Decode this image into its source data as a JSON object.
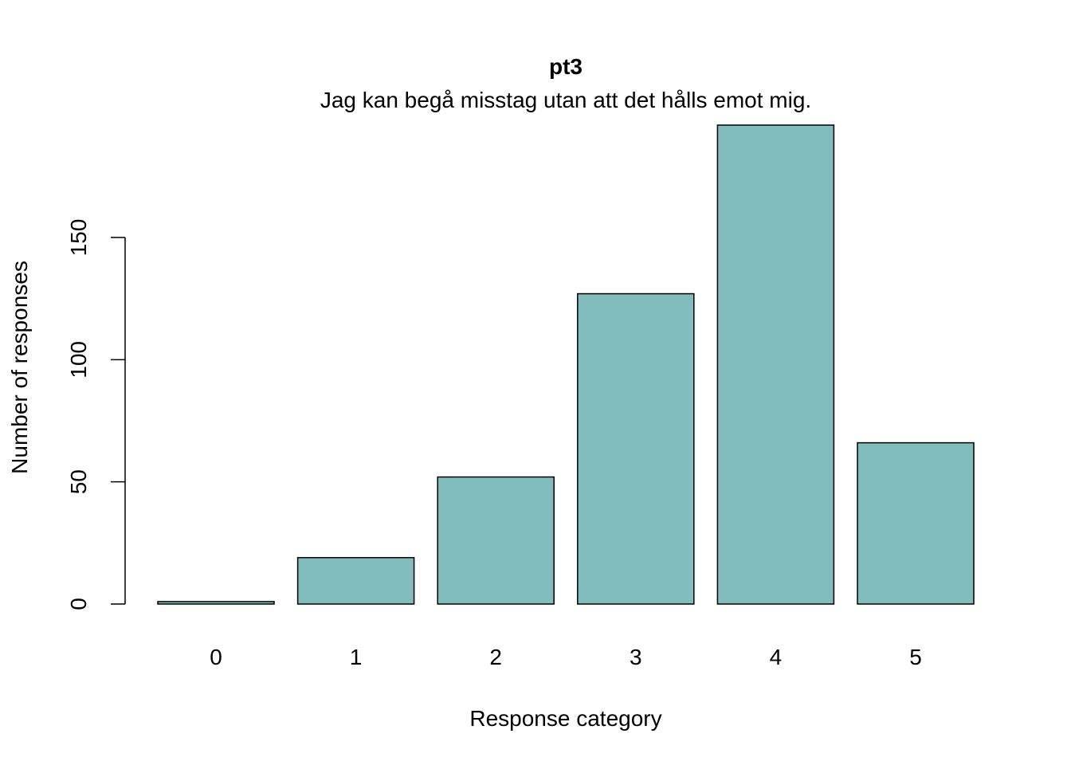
{
  "chart_data": {
    "type": "bar",
    "title": "pt3",
    "subtitle": "Jag kan begå misstag utan att det hålls emot mig.",
    "xlabel": "Response category",
    "ylabel": "Number of responses",
    "categories": [
      "0",
      "1",
      "2",
      "3",
      "4",
      "5"
    ],
    "values": [
      1,
      19,
      52,
      127,
      196,
      66
    ],
    "ylim": [
      0,
      196
    ],
    "yticks": [
      0,
      50,
      100,
      150
    ],
    "yticklabels": [
      "0",
      "50",
      "100",
      "150"
    ],
    "grid": false,
    "legend": "none",
    "bar_color": "#80BDBC",
    "bar_stroke": "#000000"
  }
}
